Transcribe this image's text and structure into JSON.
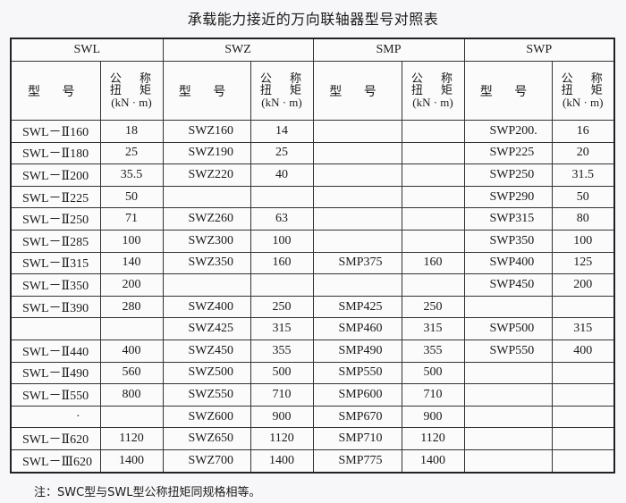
{
  "title": "承载能力接近的万向联轴器型号对照表",
  "groups": [
    "SWL",
    "SWZ",
    "SMP",
    "SWP"
  ],
  "subheaders": {
    "model": "型 号",
    "torque_line1": "公 称",
    "torque_line2": "扭 矩",
    "torque_unit": "(kN · m)"
  },
  "rows": [
    [
      "SWL－Ⅱ160",
      "18",
      "SWZ160",
      "14",
      "",
      "",
      "SWP200.",
      "16"
    ],
    [
      "SWL－Ⅱ180",
      "25",
      "SWZ190",
      "25",
      "",
      "",
      "SWP225",
      "20"
    ],
    [
      "SWL－Ⅱ200",
      "35.5",
      "SWZ220",
      "40",
      "",
      "",
      "SWP250",
      "31.5"
    ],
    [
      "SWL－Ⅱ225",
      "50",
      "",
      "",
      "",
      "",
      "SWP290",
      "50"
    ],
    [
      "SWL－Ⅱ250",
      "71",
      "SWZ260",
      "63",
      "",
      "",
      "SWP315",
      "80"
    ],
    [
      "SWL－Ⅱ285",
      "100",
      "SWZ300",
      "100",
      "",
      "",
      "SWP350",
      "100"
    ],
    [
      "SWL－Ⅱ315",
      "140",
      "SWZ350",
      "160",
      "SMP375",
      "160",
      "SWP400",
      "125"
    ],
    [
      "SWL－Ⅱ350",
      "200",
      "",
      "",
      "",
      "",
      "SWP450",
      "200"
    ],
    [
      "SWL－Ⅱ390",
      "280",
      "SWZ400",
      "250",
      "SMP425",
      "250",
      "",
      ""
    ],
    [
      "",
      "",
      "SWZ425",
      "315",
      "SMP460",
      "315",
      "SWP500",
      "315"
    ],
    [
      "SWL－Ⅱ440",
      "400",
      "SWZ450",
      "355",
      "SMP490",
      "355",
      "SWP550",
      "400"
    ],
    [
      "SWL－Ⅱ490",
      "560",
      "SWZ500",
      "500",
      "SMP550",
      "500",
      "",
      ""
    ],
    [
      "SWL－Ⅱ550",
      "800",
      "SWZ550",
      "710",
      "SMP600",
      "710",
      "",
      ""
    ],
    [
      "·",
      "",
      "SWZ600",
      "900",
      "SMP670",
      "900",
      "",
      ""
    ],
    [
      "SWL－Ⅱ620",
      "1120",
      "SWZ650",
      "1120",
      "SMP710",
      "1120",
      "",
      ""
    ],
    [
      "SWL－Ⅲ620",
      "1400",
      "SWZ700",
      "1400",
      "SMP775",
      "1400",
      "",
      ""
    ]
  ],
  "note": "注：SWC型与SWL型公称扭矩同规格相等。"
}
